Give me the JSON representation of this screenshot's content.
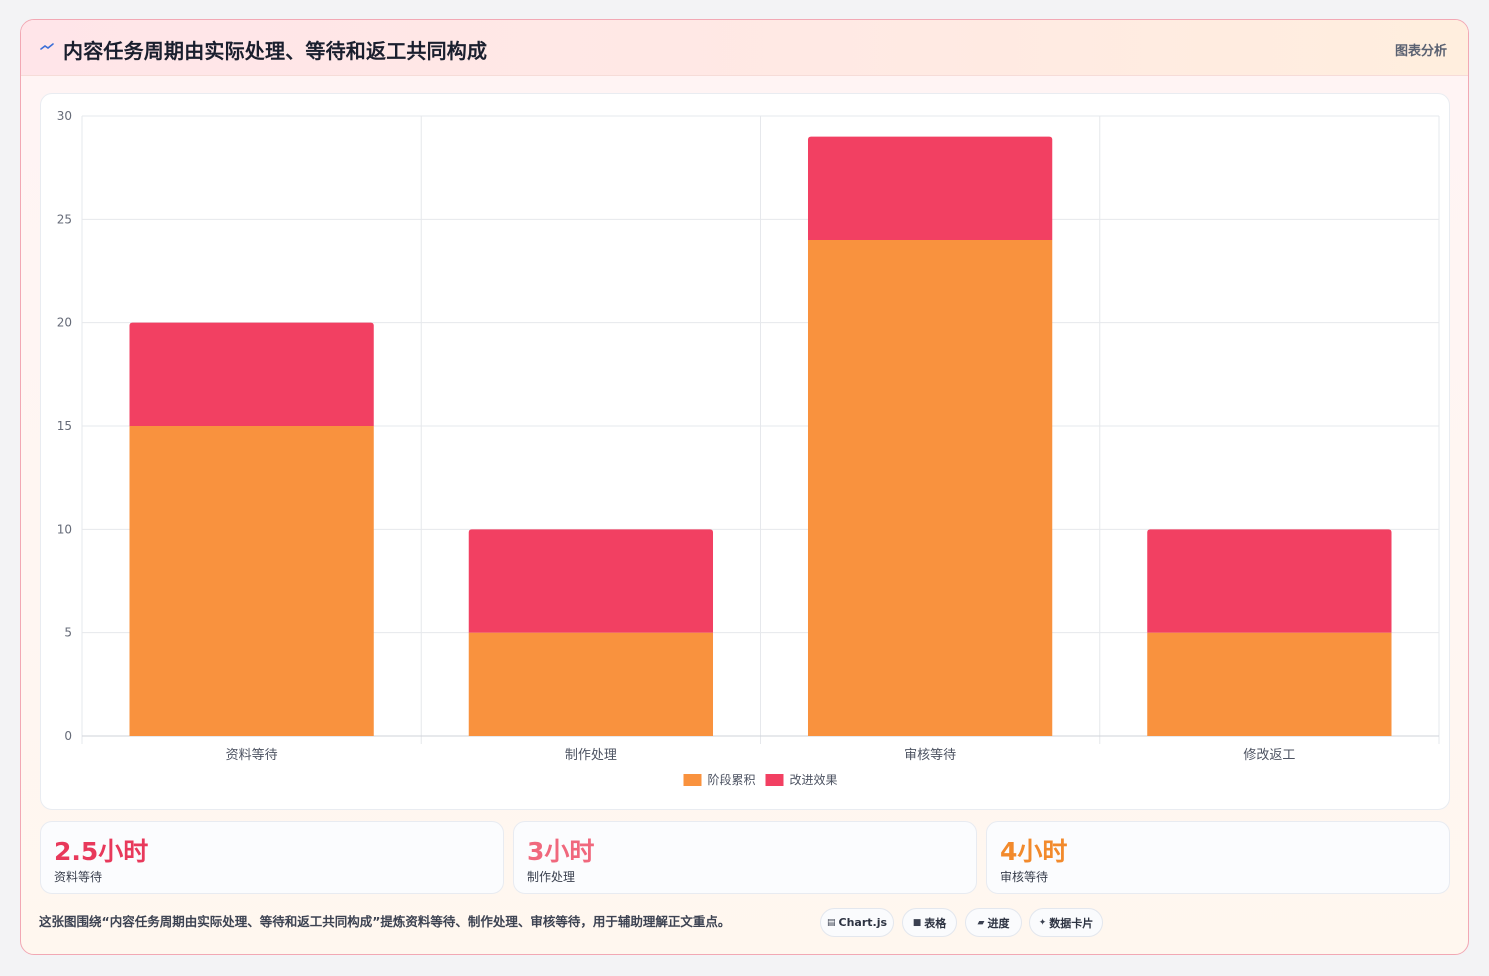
{
  "header": {
    "title": "内容任务周期由实际处理、等待和返工共同构成",
    "tag": "图表分析"
  },
  "colors": {
    "stage": "#f9923e",
    "improve": "#f24062",
    "stat1": "#e8395b",
    "stat2": "#f0687d",
    "stat3": "#f28a2c"
  },
  "chart_data": {
    "type": "bar",
    "stacked": true,
    "categories": [
      "资料等待",
      "制作处理",
      "审核等待",
      "修改返工"
    ],
    "series": [
      {
        "name": "阶段累积",
        "values": [
          15,
          5,
          24,
          5
        ],
        "color": "#f9923e"
      },
      {
        "name": "改进效果",
        "values": [
          5,
          5,
          5,
          5
        ],
        "color": "#f24062"
      }
    ],
    "ylim": [
      0,
      30
    ],
    "yticks": [
      0,
      5,
      10,
      15,
      20,
      25,
      30
    ],
    "grid": true,
    "legend": "bottom"
  },
  "stats": [
    {
      "value": "2.5小时",
      "label": "资料等待"
    },
    {
      "value": "3小时",
      "label": "制作处理"
    },
    {
      "value": "4小时",
      "label": "审核等待"
    }
  ],
  "footer": {
    "text": "这张图围绕“内容任务周期由实际处理、等待和返工共同构成”提炼资料等待、制作处理、审核等待，用于辅助理解正文重点。",
    "pills": [
      {
        "icon": "chart-icon",
        "glyph": "▤",
        "label": "Chart.js"
      },
      {
        "icon": "table-icon",
        "glyph": "■",
        "label": "表格"
      },
      {
        "icon": "progress-icon",
        "glyph": "▰",
        "label": "进度"
      },
      {
        "icon": "sparkle-icon",
        "glyph": "✦",
        "label": "数据卡片"
      }
    ]
  }
}
